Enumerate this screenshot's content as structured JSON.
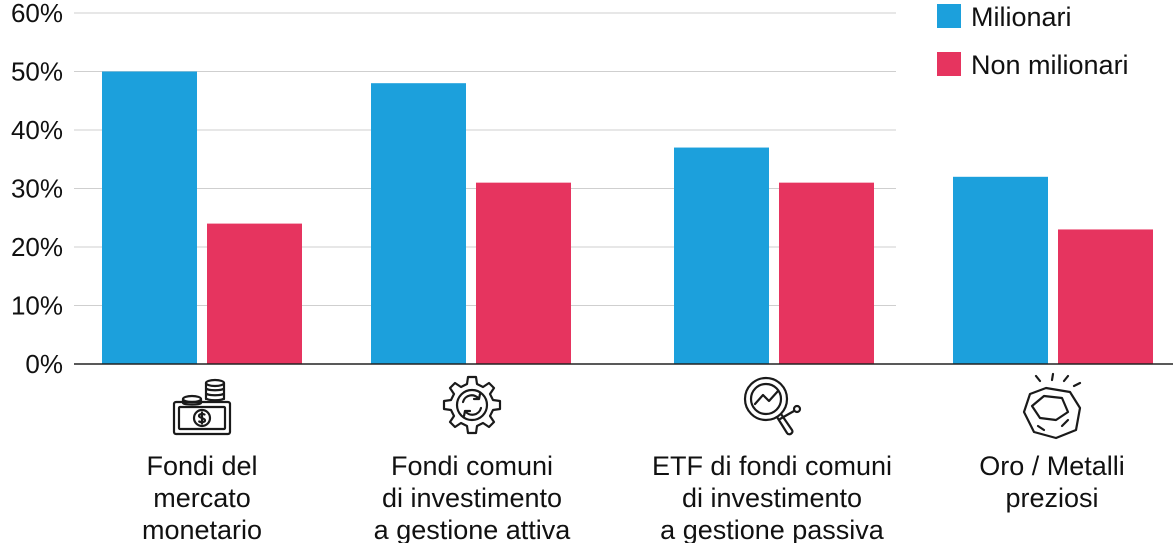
{
  "chart_data": {
    "type": "bar",
    "categories": [
      [
        "Fondi del",
        "mercato",
        "monetario"
      ],
      [
        "Fondi comuni",
        "di investimento",
        "a gestione attiva"
      ],
      [
        "ETF di fondi comuni",
        "di investimento",
        "a gestione passiva"
      ],
      [
        "Oro / Metalli",
        "preziosi"
      ]
    ],
    "series": [
      {
        "name": "Milionari",
        "color": "#1ca0dc",
        "values": [
          50,
          48,
          37,
          32
        ]
      },
      {
        "name": "Non milionari",
        "color": "#e6345f",
        "values": [
          24,
          31,
          31,
          23
        ]
      }
    ],
    "y_ticks": [
      "0%",
      "10%",
      "20%",
      "30%",
      "40%",
      "50%",
      "60%"
    ],
    "ylim": [
      0,
      60
    ],
    "grid": true,
    "legend_position": "top-right",
    "category_icons": [
      "money-coins-icon",
      "gear-cycle-icon",
      "magnifier-chart-icon",
      "gold-nugget-icon"
    ]
  }
}
